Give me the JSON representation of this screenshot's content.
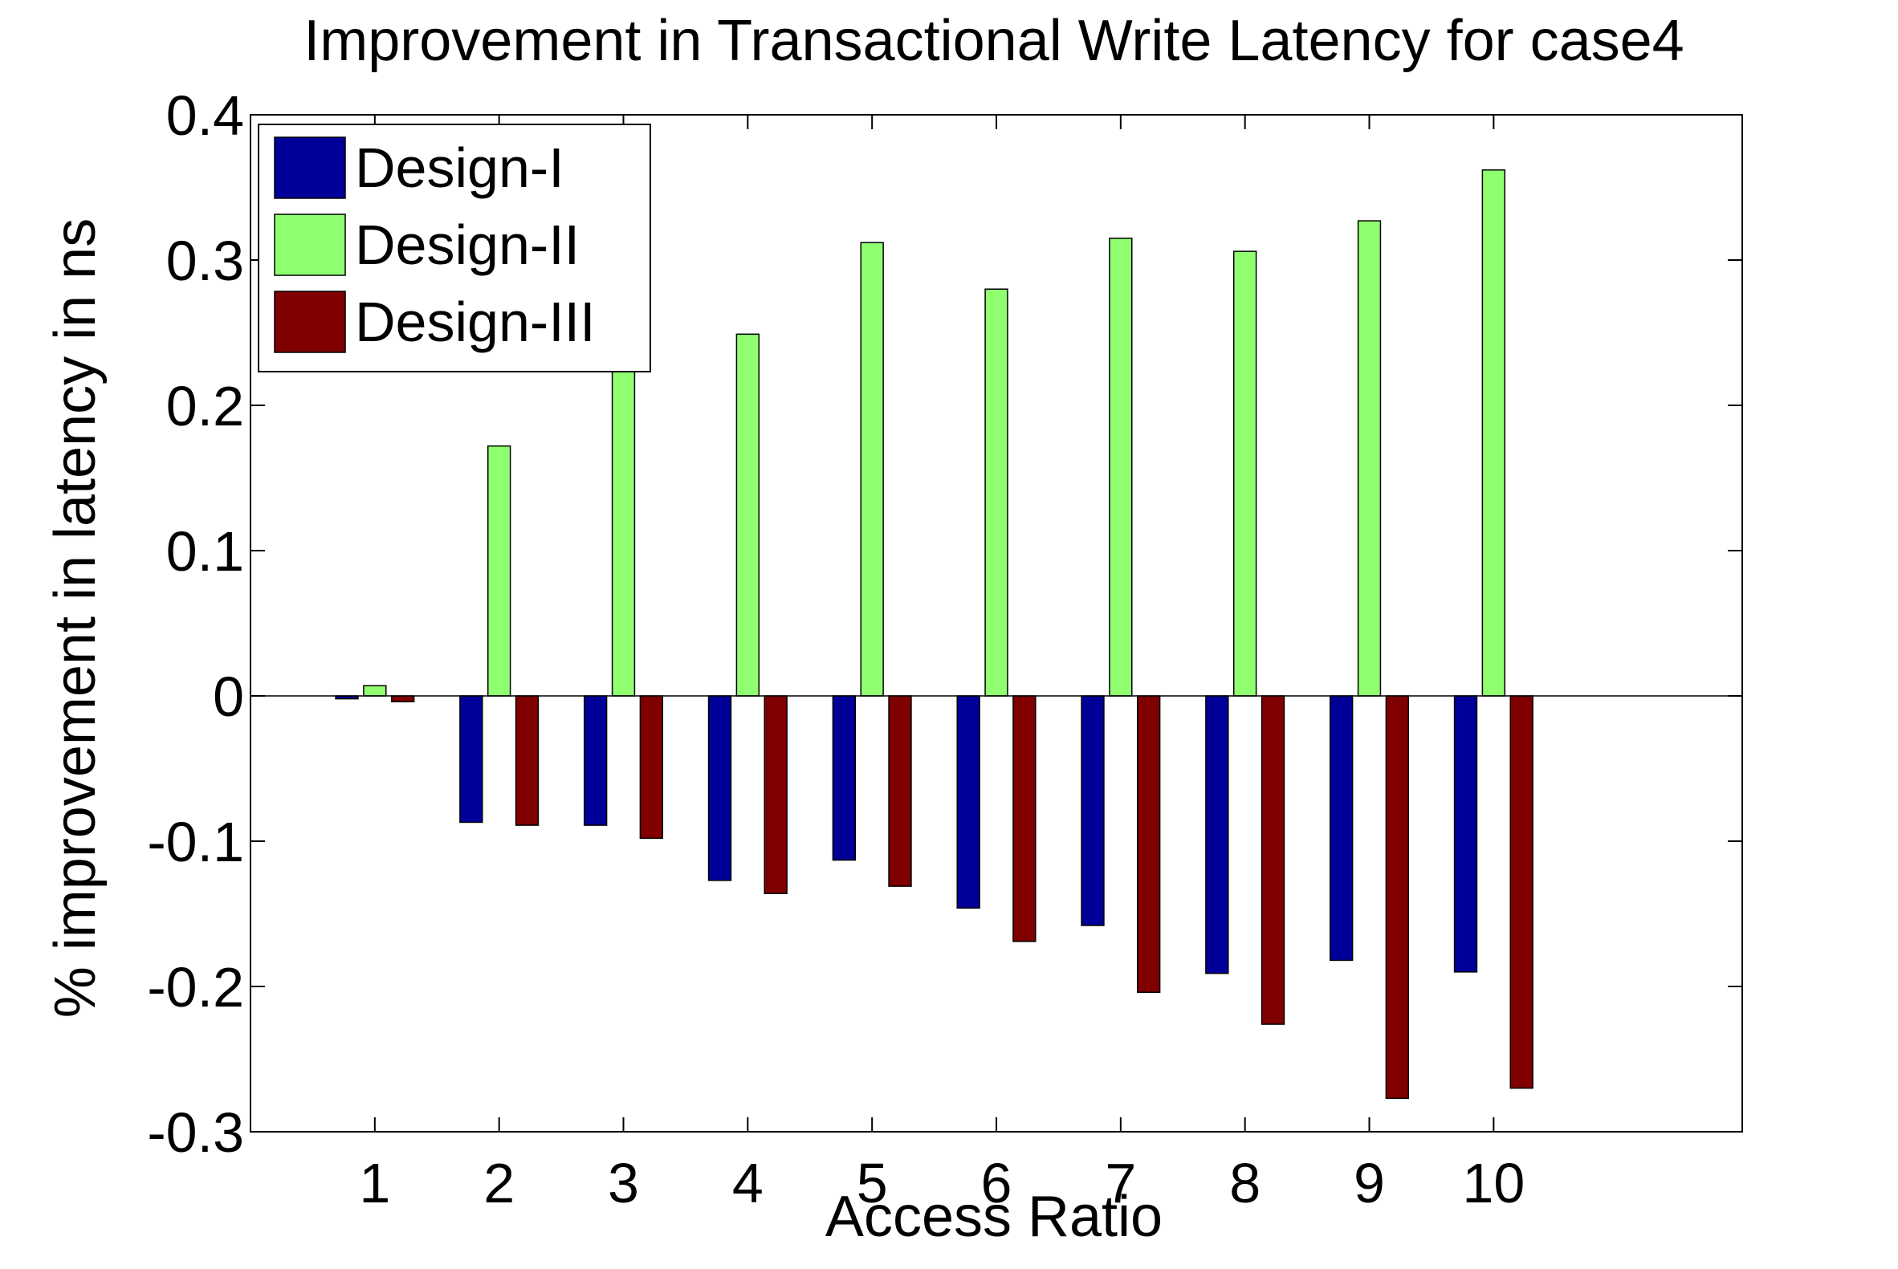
{
  "chart_data": {
    "type": "bar",
    "title": "Improvement in Transactional Write Latency for case4",
    "xlabel": "Access Ratio",
    "ylabel": "% improvement in latency in ns",
    "categories": [
      "1",
      "2",
      "3",
      "4",
      "5",
      "6",
      "7",
      "8",
      "9",
      "10"
    ],
    "xlim": [
      0,
      12
    ],
    "ylim": [
      -0.3,
      0.4
    ],
    "yticks": [
      -0.3,
      -0.2,
      -0.1,
      0,
      0.1,
      0.2,
      0.3,
      0.4
    ],
    "ytick_labels": [
      "-0.3",
      "-0.2",
      "-0.1",
      "0",
      "0.1",
      "0.2",
      "0.3",
      "0.4"
    ],
    "grid": false,
    "legend_position": "top-left",
    "series": [
      {
        "name": "Design-I",
        "color": "#000099",
        "values": [
          -0.002,
          -0.087,
          -0.089,
          -0.127,
          -0.113,
          -0.146,
          -0.158,
          -0.191,
          -0.182,
          -0.19
        ]
      },
      {
        "name": "Design-II",
        "color": "#8fff70",
        "values": [
          0.007,
          0.172,
          0.23,
          0.249,
          0.312,
          0.28,
          0.315,
          0.306,
          0.327,
          0.362
        ]
      },
      {
        "name": "Design-III",
        "color": "#800000",
        "values": [
          -0.004,
          -0.089,
          -0.098,
          -0.136,
          -0.131,
          -0.169,
          -0.204,
          -0.226,
          -0.277,
          -0.27
        ]
      }
    ]
  }
}
